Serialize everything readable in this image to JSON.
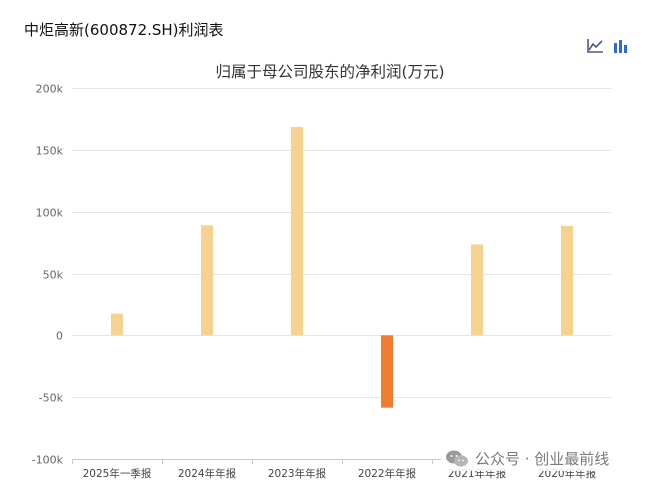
{
  "page": {
    "title": "中炬高新(600872.SH)利润表",
    "toolbar": {
      "line_icon": "line-chart-icon",
      "bar_icon": "bar-chart-icon"
    },
    "watermark": {
      "icon": "wechat-icon",
      "text": "公众号 · 创业最前线"
    }
  },
  "chart_data": {
    "type": "bar",
    "title": "归属于母公司股东的净利润(万元)",
    "categories": [
      "2025年一季报",
      "2024年年报",
      "2023年年报",
      "2022年年报",
      "2021年年报",
      "2020年年报"
    ],
    "values": [
      17500,
      89000,
      168500,
      -58500,
      73500,
      88500
    ],
    "ylim": [
      -100000,
      200000
    ],
    "yticks": [
      -100000,
      -50000,
      0,
      50000,
      100000,
      150000,
      200000
    ],
    "ytick_labels": [
      "-100k",
      "-50k",
      "0",
      "50k",
      "100k",
      "150k",
      "200k"
    ],
    "grid": true,
    "colors": {
      "positive": "#f6d290",
      "negative": "#ee7d30",
      "grid": "#e6e6e6",
      "axis_text": "#666666"
    }
  }
}
